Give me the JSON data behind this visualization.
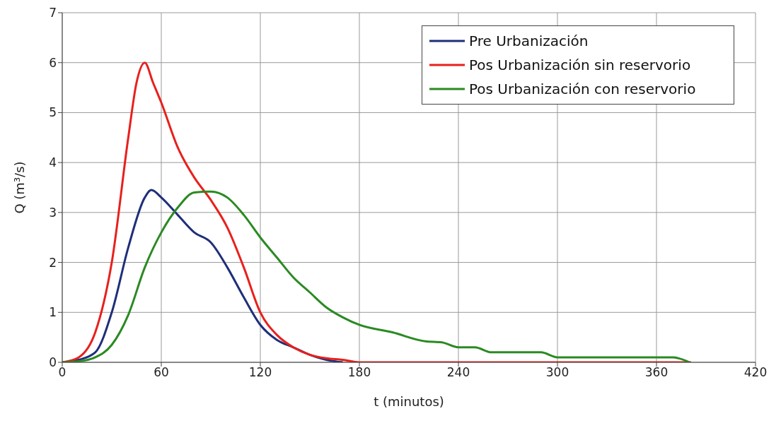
{
  "chart_data": {
    "type": "line",
    "xlabel": "t (minutos)",
    "ylabel": "Q (m³/s)",
    "xlim": [
      0,
      420
    ],
    "xticks": [
      0,
      60,
      120,
      180,
      240,
      300,
      360,
      420
    ],
    "ylim": [
      0,
      7
    ],
    "yticks": [
      0,
      1,
      2,
      3,
      4,
      5,
      6,
      7
    ],
    "grid": true,
    "legend": "top right",
    "marker": "none",
    "line_style": "solid",
    "series": [
      {
        "name": "Pre Urbanización",
        "color": "#1f2f7a",
        "x": [
          0,
          10,
          20,
          30,
          40,
          50,
          54,
          60,
          70,
          80,
          90,
          100,
          110,
          120,
          130,
          140,
          150,
          160,
          170
        ],
        "values": [
          0,
          0.05,
          0.2,
          1.0,
          2.3,
          3.3,
          3.45,
          3.3,
          2.95,
          2.6,
          2.4,
          1.9,
          1.3,
          0.75,
          0.45,
          0.3,
          0.15,
          0.05,
          0
        ]
      },
      {
        "name": "Pos Urbanización sin reservorio",
        "color": "#e8201c",
        "x": [
          0,
          10,
          20,
          30,
          40,
          45,
          50,
          55,
          60,
          70,
          80,
          90,
          100,
          110,
          120,
          130,
          140,
          150,
          160,
          170,
          180,
          240,
          300,
          381
        ],
        "values": [
          0,
          0.1,
          0.6,
          2.0,
          4.5,
          5.6,
          6.0,
          5.6,
          5.2,
          4.3,
          3.7,
          3.25,
          2.7,
          1.9,
          1.0,
          0.55,
          0.3,
          0.15,
          0.08,
          0.05,
          0,
          0,
          0,
          0
        ]
      },
      {
        "name": "Pos Urbanización con reservorio",
        "color": "#2a8a22",
        "x": [
          0,
          10,
          20,
          30,
          40,
          50,
          60,
          70,
          80,
          90,
          100,
          110,
          120,
          130,
          140,
          150,
          160,
          170,
          180,
          200,
          220,
          230,
          240,
          250,
          260,
          290,
          300,
          370,
          380
        ],
        "values": [
          0,
          0.02,
          0.1,
          0.35,
          0.95,
          1.9,
          2.6,
          3.1,
          3.4,
          3.42,
          3.3,
          2.95,
          2.5,
          2.1,
          1.7,
          1.4,
          1.1,
          0.9,
          0.75,
          0.6,
          0.42,
          0.4,
          0.3,
          0.3,
          0.2,
          0.2,
          0.1,
          0.1,
          0
        ]
      }
    ]
  }
}
